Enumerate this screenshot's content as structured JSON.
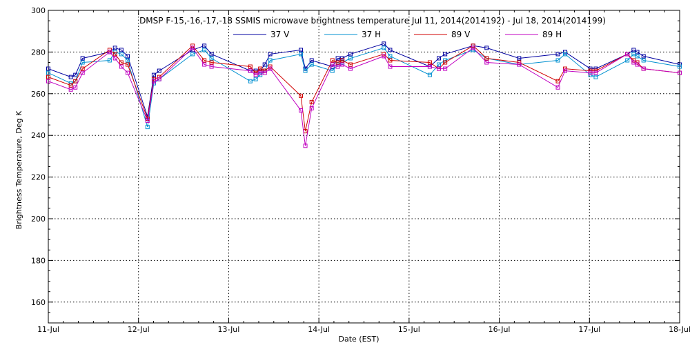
{
  "chart_data": {
    "type": "line",
    "title": "DMSP F-15,-16,-17,-18 SSMIS microwave brightness temperature Jul 11, 2014(2014192) - Jul 18, 2014(2014199)",
    "xlabel": "Date (EST)",
    "ylabel": "Brightness Temperature, Deg K",
    "xlim": [
      0,
      7
    ],
    "ylim": [
      150,
      300
    ],
    "x_tick_labels": [
      "11-Jul",
      "12-Jul",
      "13-Jul",
      "14-Jul",
      "15-Jul",
      "16-Jul",
      "17-Jul",
      "18-Jul"
    ],
    "y_ticks": [
      160,
      180,
      200,
      220,
      240,
      260,
      280,
      300
    ],
    "grid": true,
    "legend_position": "top-center",
    "series": [
      {
        "name": "37 V",
        "color": "#0000a0",
        "points": [
          [
            0.0,
            272
          ],
          [
            0.25,
            268
          ],
          [
            0.3,
            269
          ],
          [
            0.38,
            277
          ],
          [
            0.68,
            280
          ],
          [
            0.74,
            282
          ],
          [
            0.81,
            281
          ],
          [
            0.88,
            278
          ],
          [
            1.1,
            249
          ],
          [
            1.17,
            269
          ],
          [
            1.23,
            271
          ],
          [
            1.6,
            281
          ],
          [
            1.73,
            283
          ],
          [
            1.81,
            279
          ],
          [
            2.24,
            271
          ],
          [
            2.3,
            271
          ],
          [
            2.35,
            271
          ],
          [
            2.4,
            274
          ],
          [
            2.46,
            279
          ],
          [
            2.8,
            281
          ],
          [
            2.85,
            272
          ],
          [
            2.92,
            276
          ],
          [
            3.15,
            273
          ],
          [
            3.21,
            277
          ],
          [
            3.26,
            277
          ],
          [
            3.35,
            279
          ],
          [
            3.72,
            284
          ],
          [
            3.79,
            281
          ],
          [
            4.23,
            273
          ],
          [
            4.33,
            277
          ],
          [
            4.4,
            279
          ],
          [
            4.71,
            283
          ],
          [
            4.86,
            282
          ],
          [
            5.22,
            277
          ],
          [
            5.65,
            279
          ],
          [
            5.73,
            280
          ],
          [
            6.01,
            272
          ],
          [
            6.07,
            272
          ],
          [
            6.42,
            279
          ],
          [
            6.49,
            281
          ],
          [
            6.53,
            280
          ],
          [
            6.6,
            278
          ],
          [
            7.0,
            274
          ]
        ]
      },
      {
        "name": "37 H",
        "color": "#0090d0",
        "points": [
          [
            0.0,
            270
          ],
          [
            0.25,
            265
          ],
          [
            0.3,
            266
          ],
          [
            0.38,
            275
          ],
          [
            0.68,
            276
          ],
          [
            0.74,
            280
          ],
          [
            0.81,
            279
          ],
          [
            0.88,
            276
          ],
          [
            1.1,
            244
          ],
          [
            1.17,
            265
          ],
          [
            1.23,
            267
          ],
          [
            1.6,
            279
          ],
          [
            1.73,
            281
          ],
          [
            1.81,
            277
          ],
          [
            2.24,
            266
          ],
          [
            2.3,
            267
          ],
          [
            2.35,
            269
          ],
          [
            2.4,
            271
          ],
          [
            2.46,
            276
          ],
          [
            2.8,
            279
          ],
          [
            2.85,
            271
          ],
          [
            2.92,
            274
          ],
          [
            3.15,
            271
          ],
          [
            3.21,
            274
          ],
          [
            3.26,
            275
          ],
          [
            3.35,
            277
          ],
          [
            3.72,
            282
          ],
          [
            3.79,
            278
          ],
          [
            4.23,
            269
          ],
          [
            4.33,
            274
          ],
          [
            4.4,
            276
          ],
          [
            4.71,
            281
          ],
          [
            4.86,
            277
          ],
          [
            5.22,
            274
          ],
          [
            5.65,
            276
          ],
          [
            5.73,
            279
          ],
          [
            6.01,
            269
          ],
          [
            6.07,
            268
          ],
          [
            6.42,
            276
          ],
          [
            6.49,
            279
          ],
          [
            6.53,
            278
          ],
          [
            6.6,
            276
          ],
          [
            7.0,
            273
          ]
        ]
      },
      {
        "name": "89 V",
        "color": "#d00000",
        "points": [
          [
            0.0,
            268
          ],
          [
            0.25,
            264
          ],
          [
            0.3,
            266
          ],
          [
            0.38,
            272
          ],
          [
            0.68,
            281
          ],
          [
            0.74,
            279
          ],
          [
            0.81,
            275
          ],
          [
            0.88,
            274
          ],
          [
            1.1,
            248
          ],
          [
            1.17,
            267
          ],
          [
            1.23,
            268
          ],
          [
            1.6,
            283
          ],
          [
            1.73,
            276
          ],
          [
            1.81,
            275
          ],
          [
            2.24,
            273
          ],
          [
            2.3,
            270
          ],
          [
            2.35,
            272
          ],
          [
            2.4,
            271
          ],
          [
            2.46,
            273
          ],
          [
            2.8,
            259
          ],
          [
            2.85,
            242
          ],
          [
            2.92,
            256
          ],
          [
            3.15,
            276
          ],
          [
            3.21,
            275
          ],
          [
            3.26,
            276
          ],
          [
            3.35,
            274
          ],
          [
            3.72,
            279
          ],
          [
            3.79,
            276
          ],
          [
            4.23,
            275
          ],
          [
            4.33,
            272
          ],
          [
            4.4,
            275
          ],
          [
            4.71,
            283
          ],
          [
            4.86,
            277
          ],
          [
            5.22,
            275
          ],
          [
            5.65,
            266
          ],
          [
            5.73,
            272
          ],
          [
            6.01,
            271
          ],
          [
            6.07,
            271
          ],
          [
            6.42,
            279
          ],
          [
            6.49,
            276
          ],
          [
            6.53,
            275
          ],
          [
            6.6,
            272
          ],
          [
            7.0,
            270
          ]
        ]
      },
      {
        "name": "89 H",
        "color": "#c000c0",
        "points": [
          [
            0.0,
            266
          ],
          [
            0.25,
            262
          ],
          [
            0.3,
            263
          ],
          [
            0.38,
            270
          ],
          [
            0.68,
            280
          ],
          [
            0.74,
            277
          ],
          [
            0.81,
            273
          ],
          [
            0.88,
            270
          ],
          [
            1.1,
            247
          ],
          [
            1.17,
            266
          ],
          [
            1.23,
            267
          ],
          [
            1.6,
            282
          ],
          [
            1.73,
            274
          ],
          [
            1.81,
            273
          ],
          [
            2.24,
            271
          ],
          [
            2.3,
            269
          ],
          [
            2.35,
            270
          ],
          [
            2.4,
            270
          ],
          [
            2.46,
            272
          ],
          [
            2.8,
            252
          ],
          [
            2.85,
            235
          ],
          [
            2.92,
            253
          ],
          [
            3.15,
            274
          ],
          [
            3.21,
            273
          ],
          [
            3.26,
            274
          ],
          [
            3.35,
            272
          ],
          [
            3.72,
            278
          ],
          [
            3.79,
            273
          ],
          [
            4.23,
            273
          ],
          [
            4.33,
            272
          ],
          [
            4.4,
            272
          ],
          [
            4.71,
            282
          ],
          [
            4.86,
            275
          ],
          [
            5.22,
            274
          ],
          [
            5.65,
            263
          ],
          [
            5.73,
            271
          ],
          [
            6.01,
            270
          ],
          [
            6.07,
            270
          ],
          [
            6.42,
            279
          ],
          [
            6.49,
            275
          ],
          [
            6.53,
            274
          ],
          [
            6.6,
            272
          ],
          [
            7.0,
            270
          ]
        ]
      }
    ]
  }
}
